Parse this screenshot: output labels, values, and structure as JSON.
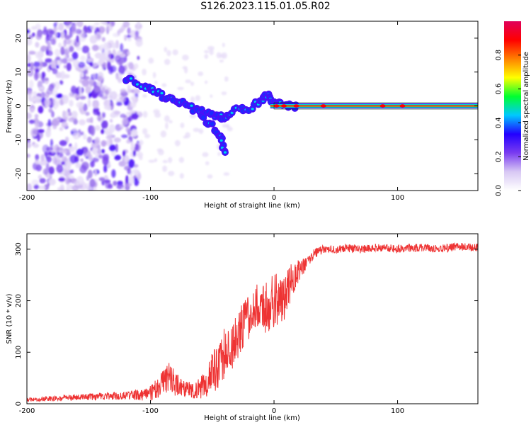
{
  "title": "S126.2023.115.01.05.R02",
  "chart_data": [
    {
      "type": "heatmap",
      "title": "S126.2023.115.01.05.R02",
      "xlabel": "Height of straight line (km)",
      "ylabel": "Frequency (Hz)",
      "xlim": [
        -200,
        165
      ],
      "ylim": [
        -25,
        25
      ],
      "xticks": [
        -200,
        -100,
        0,
        100
      ],
      "yticks": [
        -20,
        -10,
        0,
        10,
        20
      ],
      "colorbar": {
        "label": "Normalized spectral amplitude",
        "range": [
          0,
          1
        ],
        "ticks": [
          "0.0",
          "0.2",
          "0.4",
          "0.6",
          "0.8"
        ],
        "colormap": [
          "#ffffff",
          "#d8c8f4",
          "#7a3cf0",
          "#2200ff",
          "#00c8ff",
          "#00ff30",
          "#ffff00",
          "#ff8000",
          "#ff0000",
          "#e0005a"
        ]
      },
      "features": {
        "noise_region_x": [
          -200,
          -115
        ],
        "noise_freq_range": [
          -25,
          25
        ],
        "trail_points": [
          [
            -120,
            8
          ],
          [
            -105,
            6
          ],
          [
            -95,
            4
          ],
          [
            -85,
            2
          ],
          [
            -75,
            1
          ],
          [
            -65,
            -1
          ],
          [
            -55,
            -2
          ],
          [
            -45,
            -3
          ],
          [
            -40,
            -4
          ],
          [
            -33,
            -1
          ],
          [
            -20,
            -1
          ],
          [
            -10,
            2
          ],
          [
            -5,
            3
          ],
          [
            0,
            1
          ],
          [
            10,
            0
          ],
          [
            20,
            0
          ]
        ],
        "branch_points": [
          [
            -60,
            -3
          ],
          [
            -50,
            -6
          ],
          [
            -42,
            -10
          ],
          [
            -40,
            -14
          ]
        ],
        "carrier_line": {
          "x_start": 0,
          "x_end": 165,
          "freq": 0
        }
      },
      "grid": false
    },
    {
      "type": "line",
      "title": "",
      "xlabel": "Height of straight line (km)",
      "ylabel": "SNR (10 * v/v)",
      "xlim": [
        -200,
        165
      ],
      "ylim": [
        0,
        330
      ],
      "xticks": [
        -200,
        -100,
        0,
        100
      ],
      "yticks": [
        0,
        100,
        200,
        300
      ],
      "color": "#ee3333",
      "series": [
        {
          "name": "",
          "x": [
            -200,
            -190,
            -180,
            -170,
            -160,
            -150,
            -140,
            -130,
            -120,
            -110,
            -100,
            -95,
            -90,
            -85,
            -80,
            -75,
            -70,
            -65,
            -60,
            -55,
            -50,
            -45,
            -40,
            -35,
            -30,
            -25,
            -20,
            -15,
            -10,
            -5,
            0,
            5,
            10,
            15,
            20,
            25,
            30,
            35,
            40,
            50,
            60,
            70,
            80,
            90,
            100,
            110,
            120,
            130,
            140,
            150,
            165
          ],
          "y": [
            8,
            9,
            10,
            11,
            12,
            13,
            14,
            15,
            16,
            17,
            20,
            30,
            40,
            50,
            40,
            30,
            30,
            25,
            30,
            40,
            60,
            80,
            100,
            110,
            130,
            150,
            170,
            190,
            180,
            190,
            200,
            200,
            215,
            240,
            255,
            270,
            285,
            295,
            300,
            300,
            302,
            300,
            303,
            302,
            300,
            302,
            303,
            301,
            302,
            305,
            303
          ]
        }
      ],
      "noise_amplitude": [
        3,
        4,
        5,
        6,
        6,
        7,
        7,
        8,
        8,
        10,
        15,
        20,
        25,
        30,
        25,
        18,
        15,
        15,
        20,
        30,
        40,
        50,
        55,
        50,
        50,
        50,
        45,
        45,
        45,
        50,
        55,
        50,
        45,
        35,
        25,
        15,
        10,
        10,
        8,
        8,
        8,
        8,
        8,
        8,
        8,
        8,
        8,
        8,
        8,
        8,
        8
      ],
      "grid": false
    }
  ]
}
